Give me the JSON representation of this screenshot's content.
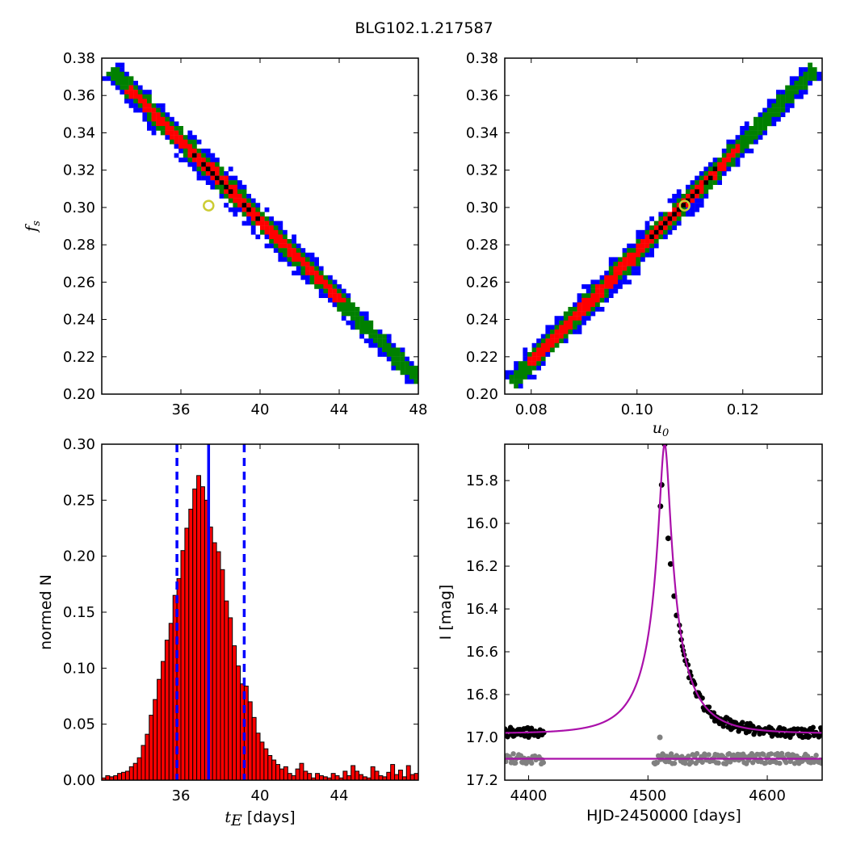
{
  "figure_title": "BLG102.1.217587",
  "chart_data": [
    {
      "id": "fs_vs_tE",
      "type": "heatmap",
      "xlabel": "",
      "ylabel": "f_s",
      "xlim": [
        32,
        48
      ],
      "ylim": [
        0.2,
        0.38
      ],
      "xticks": [
        36,
        40,
        44,
        48
      ],
      "yticks": [
        0.2,
        0.22,
        0.24,
        0.26,
        0.28,
        0.3,
        0.32,
        0.34,
        0.36,
        0.38
      ],
      "ytick_labels": [
        "0.20",
        "0.22",
        "0.24",
        "0.26",
        "0.28",
        "0.30",
        "0.32",
        "0.34",
        "0.36",
        "0.38"
      ],
      "contour_colors": {
        "outer": "#0000ff",
        "mid": "#008000",
        "inner": "#ff0000",
        "core": "#000000"
      },
      "ridge": [
        [
          32.6,
          0.372
        ],
        [
          48.0,
          0.208
        ]
      ],
      "best_fit": {
        "x": 37.4,
        "y": 0.301
      }
    },
    {
      "id": "fs_vs_u0",
      "type": "heatmap",
      "xlabel": "u_0",
      "ylabel": "",
      "xlim": [
        0.075,
        0.135
      ],
      "ylim": [
        0.2,
        0.38
      ],
      "xticks": [
        0.08,
        0.1,
        0.12
      ],
      "xtick_labels": [
        "0.08",
        "0.10",
        "0.12"
      ],
      "yticks": [
        0.2,
        0.22,
        0.24,
        0.26,
        0.28,
        0.3,
        0.32,
        0.34,
        0.36,
        0.38
      ],
      "ytick_labels": [
        "0.20",
        "0.22",
        "0.24",
        "0.26",
        "0.28",
        "0.30",
        "0.32",
        "0.34",
        "0.36",
        "0.38"
      ],
      "contour_colors": {
        "outer": "#0000ff",
        "mid": "#008000",
        "inner": "#ff0000",
        "core": "#000000"
      },
      "ridge": [
        [
          0.0765,
          0.207
        ],
        [
          0.1335,
          0.374
        ]
      ],
      "best_fit": {
        "x": 0.109,
        "y": 0.301
      }
    },
    {
      "id": "tE_histogram",
      "type": "bar",
      "xlabel": "t_E  [days]",
      "ylabel": "normed N",
      "xlim": [
        32.0,
        48.0
      ],
      "ylim": [
        0.0,
        0.3
      ],
      "xticks": [
        36,
        40,
        44
      ],
      "yticks": [
        0.0,
        0.05,
        0.1,
        0.15,
        0.2,
        0.25,
        0.3
      ],
      "ytick_labels": [
        "0.00",
        "0.05",
        "0.10",
        "0.15",
        "0.20",
        "0.25",
        "0.30"
      ],
      "bin_start": 32.0,
      "bin_width": 0.2,
      "bar_color": "#ff0000",
      "values": [
        0.002,
        0.004,
        0.003,
        0.004,
        0.006,
        0.007,
        0.008,
        0.012,
        0.015,
        0.02,
        0.031,
        0.041,
        0.058,
        0.072,
        0.09,
        0.106,
        0.125,
        0.14,
        0.165,
        0.18,
        0.205,
        0.225,
        0.242,
        0.26,
        0.272,
        0.262,
        0.25,
        0.226,
        0.212,
        0.204,
        0.188,
        0.16,
        0.145,
        0.12,
        0.102,
        0.086,
        0.084,
        0.07,
        0.056,
        0.042,
        0.034,
        0.028,
        0.022,
        0.018,
        0.014,
        0.01,
        0.012,
        0.006,
        0.004,
        0.01,
        0.015,
        0.008,
        0.006,
        0.002,
        0.006,
        0.004,
        0.003,
        0.002,
        0.006,
        0.004,
        0.002,
        0.008,
        0.004,
        0.013,
        0.008,
        0.005,
        0.003,
        0.002,
        0.012,
        0.008,
        0.004,
        0.003,
        0.007,
        0.014,
        0.005,
        0.009,
        0.003,
        0.013,
        0.005,
        0.006
      ],
      "median": 37.4,
      "lower": 35.8,
      "upper": 39.2,
      "line_color": "#0000ff"
    },
    {
      "id": "light_curve",
      "type": "scatter",
      "xlabel": "HJD-2450000 [days]",
      "ylabel": "I [mag]",
      "xlim": [
        4380,
        4646
      ],
      "ylim": [
        17.2,
        15.63
      ],
      "xticks": [
        4400,
        4500,
        4600
      ],
      "yticks": [
        15.8,
        16.0,
        16.2,
        16.4,
        16.6,
        16.8,
        17.0,
        17.2
      ],
      "ytick_labels": [
        "15.8",
        "16.0",
        "16.2",
        "16.4",
        "16.6",
        "16.8",
        "17.0",
        "17.2"
      ],
      "model": {
        "t0": 4514.0,
        "tE": 37.4,
        "u0": 0.109,
        "fs": 0.301,
        "baseline_mag": 16.982
      },
      "residual_offset_mag": 17.1,
      "data_color": "#000000",
      "residual_color": "#808080",
      "model_color": "#aa10aa",
      "peak_points": [
        [
          4510.5,
          15.92
        ],
        [
          4511.5,
          15.82
        ],
        [
          4514.0,
          15.63
        ],
        [
          4517.0,
          16.07
        ],
        [
          4519.0,
          16.19
        ],
        [
          4522.0,
          16.34
        ],
        [
          4524.0,
          16.43
        ]
      ],
      "residual_outlier": {
        "x": 4510.0,
        "y": 17.0
      }
    }
  ]
}
